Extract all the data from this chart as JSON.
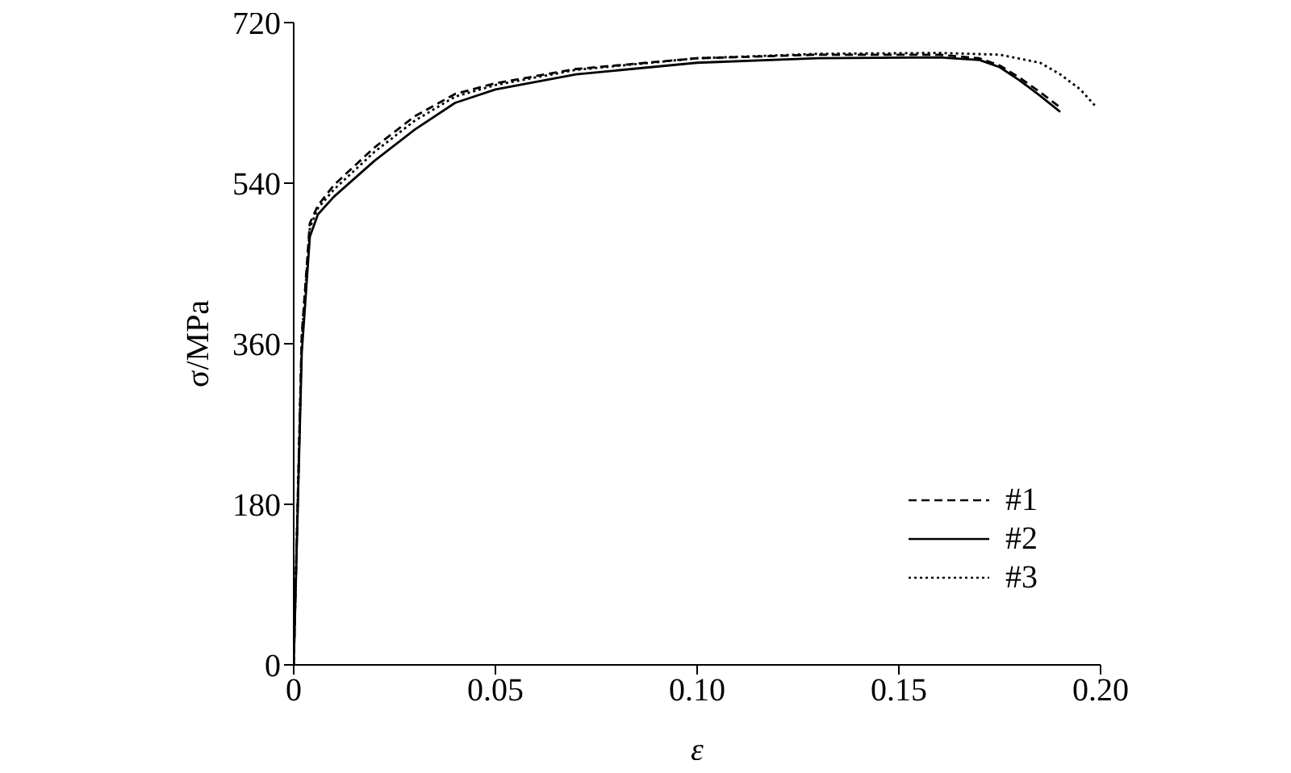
{
  "chart_data": {
    "type": "line",
    "xlabel": "ε",
    "ylabel": "σ/MPa",
    "xlim": [
      0,
      0.2
    ],
    "xticks": [
      0,
      0.05,
      {
        "value": 0.1,
        "label": "0.10"
      },
      0.15,
      {
        "value": 0.2,
        "label": "0.20"
      }
    ],
    "ylim": [
      0,
      720
    ],
    "yticks": [
      0,
      180,
      360,
      540,
      720
    ],
    "grid": false,
    "legend": "bottom right",
    "marker": "none",
    "series": [
      {
        "name": "#1",
        "color": "#000000",
        "line_style": "dashed",
        "x": [
          0,
          0.002,
          0.004,
          0.006,
          0.01,
          0.02,
          0.03,
          0.04,
          0.05,
          0.07,
          0.1,
          0.13,
          0.16,
          0.17,
          0.175,
          0.18,
          0.185,
          0.19
        ],
        "values": [
          0,
          370,
          495,
          515,
          538,
          580,
          615,
          640,
          652,
          668,
          680,
          684,
          684,
          680,
          672,
          658,
          642,
          625
        ]
      },
      {
        "name": "#2",
        "color": "#000000",
        "line_style": "solid",
        "x": [
          0,
          0.002,
          0.004,
          0.006,
          0.01,
          0.02,
          0.03,
          0.04,
          0.05,
          0.07,
          0.1,
          0.13,
          0.16,
          0.17,
          0.175,
          0.18,
          0.185,
          0.19
        ],
        "values": [
          0,
          350,
          480,
          505,
          525,
          565,
          600,
          630,
          645,
          662,
          675,
          680,
          681,
          678,
          670,
          655,
          638,
          620
        ]
      },
      {
        "name": "#3",
        "color": "#000000",
        "line_style": "dotted",
        "x": [
          0,
          0.002,
          0.004,
          0.006,
          0.01,
          0.02,
          0.03,
          0.04,
          0.05,
          0.07,
          0.1,
          0.13,
          0.16,
          0.175,
          0.185,
          0.19,
          0.195,
          0.199
        ],
        "values": [
          0,
          365,
          490,
          512,
          533,
          575,
          610,
          637,
          650,
          667,
          680,
          685,
          686,
          684,
          675,
          662,
          645,
          625
        ]
      }
    ]
  }
}
